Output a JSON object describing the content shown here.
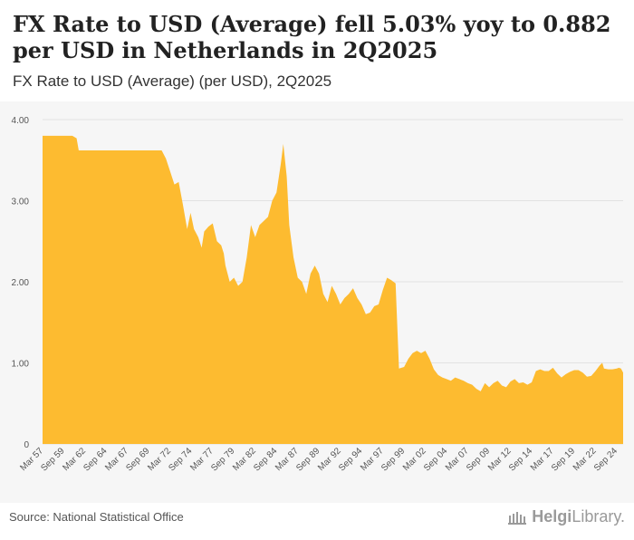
{
  "header": {
    "title": "FX Rate to USD (Average) fell 5.03% yoy to 0.882 per USD in Netherlands in 2Q2025",
    "subtitle": "FX Rate to USD (Average) (per USD), 2Q2025"
  },
  "footer": {
    "source": "Source: National Statistical Office",
    "logo_part1": "Helgi",
    "logo_part2": "Library."
  },
  "colors": {
    "fill": "#FDBB30",
    "grid": "#e2e2e2",
    "axis_text": "#555555"
  },
  "chart_data": {
    "type": "area",
    "title": "FX Rate to USD (Average) (per USD), 2Q2025",
    "ylim": [
      0,
      4
    ],
    "yticks": [
      "0",
      "1.00",
      "2.00",
      "3.00",
      "4.00"
    ],
    "xticks": [
      "Mar 57",
      "Sep 59",
      "Mar 62",
      "Sep 64",
      "Mar 67",
      "Sep 69",
      "Mar 72",
      "Sep 74",
      "Mar 77",
      "Sep 79",
      "Mar 82",
      "Sep 84",
      "Mar 87",
      "Sep 89",
      "Mar 92",
      "Sep 94",
      "Mar 97",
      "Sep 99",
      "Mar 02",
      "Sep 04",
      "Mar 07",
      "Sep 09",
      "Mar 12",
      "Sep 14",
      "Mar 17",
      "Sep 19",
      "Mar 22",
      "Sep 24"
    ],
    "x_start": 1957.0,
    "x_end": 2025.25,
    "series": [
      {
        "name": "FX Rate to USD (Average)",
        "points": [
          [
            1957.0,
            3.8
          ],
          [
            1960.5,
            3.8
          ],
          [
            1961.0,
            3.77
          ],
          [
            1961.25,
            3.62
          ],
          [
            1970.0,
            3.62
          ],
          [
            1971.0,
            3.62
          ],
          [
            1971.5,
            3.52
          ],
          [
            1972.0,
            3.36
          ],
          [
            1972.5,
            3.2
          ],
          [
            1973.0,
            3.23
          ],
          [
            1973.5,
            2.95
          ],
          [
            1974.0,
            2.65
          ],
          [
            1974.4,
            2.85
          ],
          [
            1974.8,
            2.65
          ],
          [
            1975.3,
            2.55
          ],
          [
            1975.7,
            2.42
          ],
          [
            1976.0,
            2.62
          ],
          [
            1976.5,
            2.68
          ],
          [
            1977.0,
            2.72
          ],
          [
            1977.5,
            2.5
          ],
          [
            1978.0,
            2.45
          ],
          [
            1978.3,
            2.35
          ],
          [
            1978.5,
            2.2
          ],
          [
            1979.0,
            2.0
          ],
          [
            1979.5,
            2.05
          ],
          [
            1980.0,
            1.95
          ],
          [
            1980.5,
            2.0
          ],
          [
            1981.0,
            2.3
          ],
          [
            1981.5,
            2.7
          ],
          [
            1982.0,
            2.55
          ],
          [
            1982.5,
            2.7
          ],
          [
            1983.0,
            2.75
          ],
          [
            1983.5,
            2.8
          ],
          [
            1984.0,
            3.0
          ],
          [
            1984.5,
            3.1
          ],
          [
            1985.0,
            3.45
          ],
          [
            1985.3,
            3.7
          ],
          [
            1985.7,
            3.3
          ],
          [
            1986.0,
            2.7
          ],
          [
            1986.5,
            2.3
          ],
          [
            1987.0,
            2.05
          ],
          [
            1987.5,
            2.0
          ],
          [
            1988.0,
            1.85
          ],
          [
            1988.5,
            2.1
          ],
          [
            1989.0,
            2.2
          ],
          [
            1989.5,
            2.1
          ],
          [
            1990.0,
            1.85
          ],
          [
            1990.5,
            1.75
          ],
          [
            1991.0,
            1.95
          ],
          [
            1991.5,
            1.85
          ],
          [
            1992.0,
            1.72
          ],
          [
            1992.5,
            1.8
          ],
          [
            1993.0,
            1.85
          ],
          [
            1993.5,
            1.92
          ],
          [
            1994.0,
            1.8
          ],
          [
            1994.5,
            1.72
          ],
          [
            1995.0,
            1.6
          ],
          [
            1995.5,
            1.62
          ],
          [
            1996.0,
            1.7
          ],
          [
            1996.5,
            1.72
          ],
          [
            1997.0,
            1.9
          ],
          [
            1997.5,
            2.05
          ],
          [
            1998.0,
            2.02
          ],
          [
            1998.5,
            1.98
          ],
          [
            1998.9,
            0.93
          ],
          [
            1999.5,
            0.95
          ],
          [
            2000.0,
            1.05
          ],
          [
            2000.5,
            1.12
          ],
          [
            2001.0,
            1.15
          ],
          [
            2001.5,
            1.12
          ],
          [
            2002.0,
            1.15
          ],
          [
            2002.5,
            1.05
          ],
          [
            2003.0,
            0.92
          ],
          [
            2003.5,
            0.85
          ],
          [
            2004.0,
            0.82
          ],
          [
            2004.5,
            0.8
          ],
          [
            2005.0,
            0.78
          ],
          [
            2005.5,
            0.82
          ],
          [
            2006.0,
            0.8
          ],
          [
            2006.5,
            0.78
          ],
          [
            2007.0,
            0.75
          ],
          [
            2007.5,
            0.73
          ],
          [
            2008.0,
            0.68
          ],
          [
            2008.5,
            0.65
          ],
          [
            2009.0,
            0.75
          ],
          [
            2009.5,
            0.7
          ],
          [
            2010.0,
            0.75
          ],
          [
            2010.5,
            0.78
          ],
          [
            2011.0,
            0.72
          ],
          [
            2011.5,
            0.7
          ],
          [
            2012.0,
            0.77
          ],
          [
            2012.5,
            0.8
          ],
          [
            2013.0,
            0.75
          ],
          [
            2013.5,
            0.76
          ],
          [
            2014.0,
            0.73
          ],
          [
            2014.5,
            0.76
          ],
          [
            2015.0,
            0.9
          ],
          [
            2015.5,
            0.92
          ],
          [
            2016.0,
            0.9
          ],
          [
            2016.5,
            0.9
          ],
          [
            2017.0,
            0.94
          ],
          [
            2017.5,
            0.87
          ],
          [
            2018.0,
            0.82
          ],
          [
            2018.5,
            0.86
          ],
          [
            2019.0,
            0.89
          ],
          [
            2019.5,
            0.91
          ],
          [
            2020.0,
            0.91
          ],
          [
            2020.5,
            0.88
          ],
          [
            2021.0,
            0.83
          ],
          [
            2021.5,
            0.84
          ],
          [
            2022.0,
            0.9
          ],
          [
            2022.5,
            0.97
          ],
          [
            2022.8,
            1.0
          ],
          [
            2023.0,
            0.93
          ],
          [
            2023.5,
            0.92
          ],
          [
            2024.0,
            0.92
          ],
          [
            2024.5,
            0.93
          ],
          [
            2024.75,
            0.94
          ],
          [
            2025.0,
            0.93
          ],
          [
            2025.25,
            0.88
          ]
        ]
      }
    ]
  }
}
